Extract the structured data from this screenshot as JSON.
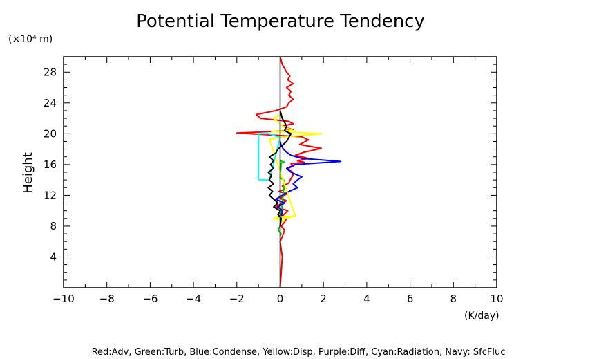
{
  "chart_data": {
    "type": "line",
    "title": "Potential Temperature Tendency",
    "ylabel": "Height",
    "y_unit": "(×10⁴ m)",
    "x_unit": "(K/day)",
    "caption": "Red:Adv, Green:Turb, Blue:Condense, Yellow:Disp, Purple:Diff, Cyan:Radiation, Navy: SfcFluc",
    "xlim": [
      -10,
      10
    ],
    "ylim": [
      0,
      30
    ],
    "x_ticks": [
      -10,
      -8,
      -6,
      -4,
      -2,
      0,
      2,
      4,
      6,
      8,
      10
    ],
    "x_tick_labels": [
      "−10",
      "−8",
      "−6",
      "−4",
      "−2",
      "0",
      "2",
      "4",
      "6",
      "8",
      "10"
    ],
    "y_ticks": [
      4,
      8,
      12,
      16,
      20,
      24,
      28
    ],
    "y_tick_labels": [
      "4",
      "8",
      "12",
      "16",
      "20",
      "24",
      "28"
    ],
    "grid": false,
    "series": [
      {
        "name": "Red",
        "color": "#ff0000",
        "x": [
          0,
          0.05,
          0.1,
          0,
          0.15,
          0.2,
          0.05,
          0.2,
          0.3,
          0.1,
          0.35,
          -0.2,
          0.1,
          0.3,
          0,
          0.2,
          0.3,
          -0.05,
          0.2,
          0.1,
          0.4,
          0.5,
          0.6,
          0.55,
          0.3,
          0.6,
          0.5,
          1.1,
          0.8,
          1.3,
          0.7,
          1.1,
          1.9,
          0.9,
          1.3,
          1.0,
          -2.0,
          -0.3,
          0.6,
          0.3,
          0.1,
          0.6,
          0.4,
          -0.9,
          -1.1,
          -0.2,
          0.3,
          0.4,
          0.6,
          0.4,
          0.5,
          0.3,
          0.6,
          0.35,
          0.45,
          0.3,
          0.2,
          0.1,
          0.0
        ],
        "y": [
          0,
          2,
          4,
          6,
          7,
          7.5,
          8,
          8.5,
          9,
          9.3,
          10,
          10.5,
          11,
          11.3,
          11.6,
          12,
          12.2,
          12.5,
          12.8,
          13.2,
          13.6,
          14.2,
          14.6,
          15.1,
          15.4,
          15.8,
          16.1,
          16.3,
          16.5,
          16.8,
          17.2,
          17.6,
          18.1,
          18.6,
          19.2,
          19.6,
          20.1,
          20.3,
          20.5,
          20.8,
          21,
          21.3,
          21.6,
          22,
          22.5,
          23,
          23.5,
          24,
          24.5,
          25,
          25.5,
          26,
          26.5,
          27,
          27.5,
          28,
          28.5,
          29,
          30
        ]
      },
      {
        "name": "Green",
        "color": "#00cc00",
        "x": [
          0,
          0.05,
          -0.1,
          0.0,
          0.2,
          0.0,
          0.05,
          0.2,
          0.0
        ],
        "y": [
          6.7,
          7,
          7.5,
          8,
          13.9,
          14.3,
          16.2,
          16.3,
          16.5
        ]
      },
      {
        "name": "Blue",
        "color": "#0000ff",
        "x": [
          0,
          0.05,
          0.1,
          -0.1,
          0.2,
          -0.2,
          0.1,
          0.4,
          0.8,
          0.6,
          0.8,
          1.0,
          0.5,
          0.3,
          0.7,
          2.8,
          1.0,
          0.5,
          0.3,
          0.15,
          0.05,
          0.0
        ],
        "y": [
          8,
          9,
          10,
          10.5,
          11,
          11.5,
          12,
          12.5,
          13,
          13.5,
          14,
          14.4,
          15,
          15.5,
          16,
          16.4,
          16.8,
          17.2,
          17.6,
          18,
          18.5,
          19
        ]
      },
      {
        "name": "Yellow",
        "color": "#ffff00",
        "x": [
          0,
          0.2,
          -0.3,
          0.5,
          -0.2,
          0.7,
          -0.5,
          0.3,
          1.9,
          0.5,
          -0.4,
          0.6,
          0.1,
          -0.3,
          0
        ],
        "y": [
          8.5,
          8.7,
          9,
          9.1,
          9.2,
          9.3,
          19.3,
          19.6,
          20,
          20.2,
          20.3,
          20.4,
          21,
          22,
          22.5
        ]
      },
      {
        "name": "Cyan",
        "color": "#00ffff",
        "x": [
          -1.0,
          -1.0,
          -0.5,
          0.0,
          -0.5,
          -1.0,
          -1.0
        ],
        "y": [
          14,
          20,
          20,
          19.5,
          14,
          14,
          14
        ]
      },
      {
        "name": "Black",
        "color": "#000000",
        "x": [
          0,
          0.05,
          -0.1,
          0.0,
          -0.3,
          -0.1,
          -0.5,
          -0.35,
          -0.55,
          -0.3,
          -0.5,
          -0.4,
          -0.55,
          -0.3,
          -0.45,
          -0.3,
          -0.5,
          -0.2,
          -0.1,
          0.1,
          0.3,
          0.5,
          0.2,
          0.3,
          0.1,
          0.0
        ],
        "y": [
          8,
          9,
          9.5,
          10,
          10.5,
          11,
          12,
          12.5,
          13,
          13.5,
          14,
          14.6,
          15,
          15.5,
          16,
          16.5,
          17,
          17.5,
          18,
          18.5,
          19,
          20,
          20.4,
          21,
          22,
          23
        ]
      }
    ]
  }
}
